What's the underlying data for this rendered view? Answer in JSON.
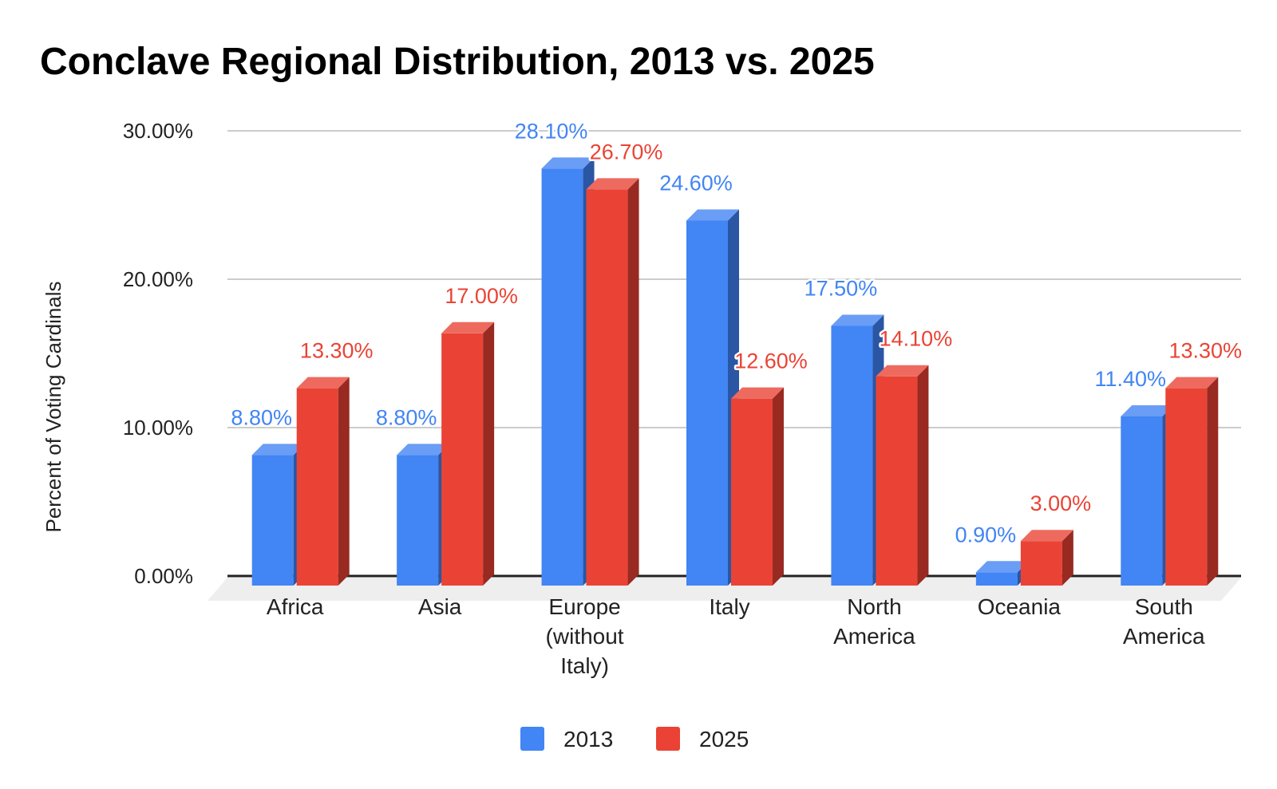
{
  "chart_data": {
    "type": "bar",
    "title": "Conclave Regional Distribution, 2013 vs. 2025",
    "xlabel": "",
    "ylabel": "Percent of Voting Cardinals",
    "ylim": [
      0,
      30
    ],
    "yticks": [
      0,
      10,
      20,
      30
    ],
    "ytick_labels": [
      "0.00%",
      "10.00%",
      "20.00%",
      "30.00%"
    ],
    "grid": true,
    "legend_position": "bottom",
    "categories": [
      [
        "Africa"
      ],
      [
        "Asia"
      ],
      [
        "Europe",
        "(without",
        "Italy)"
      ],
      [
        "Italy"
      ],
      [
        "North",
        "America"
      ],
      [
        "Oceania"
      ],
      [
        "South",
        "America"
      ]
    ],
    "series": [
      {
        "name": "2013",
        "color": "#4285f4",
        "side_color": "#2a56a4",
        "top_color": "#6a9df6",
        "values": [
          8.8,
          8.8,
          28.1,
          24.6,
          17.5,
          0.9,
          11.4
        ],
        "labels": [
          "8.80%",
          "8.80%",
          "28.10%",
          "24.60%",
          "17.50%",
          "0.90%",
          "11.40%"
        ]
      },
      {
        "name": "2025",
        "color": "#ea4335",
        "side_color": "#982a22",
        "top_color": "#ee6a5e",
        "values": [
          13.3,
          17.0,
          26.7,
          12.6,
          14.1,
          3.0,
          13.3
        ],
        "labels": [
          "13.30%",
          "17.00%",
          "26.70%",
          "12.60%",
          "14.10%",
          "3.00%",
          "13.30%"
        ]
      }
    ]
  }
}
